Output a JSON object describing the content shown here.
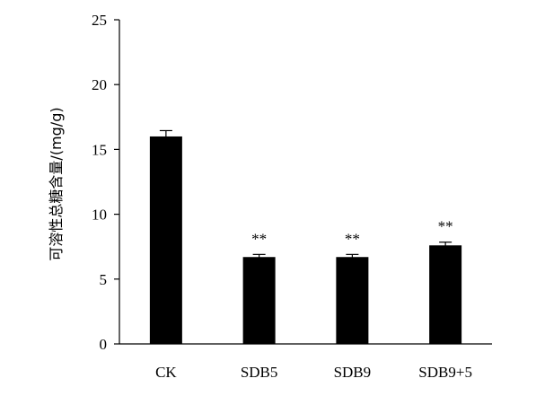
{
  "chart_data": {
    "type": "bar",
    "title": "",
    "xlabel": "",
    "ylabel": "可溶性总糖含量/(mg/g)",
    "ylim": [
      0,
      25
    ],
    "yticks": [
      0,
      5,
      10,
      15,
      20,
      25
    ],
    "categories": [
      "CK",
      "SDB5",
      "SDB9",
      "SDB9+5"
    ],
    "values": [
      16.0,
      6.7,
      6.7,
      7.6
    ],
    "errors": [
      0.45,
      0.2,
      0.2,
      0.25
    ],
    "annotations": [
      "",
      "**",
      "**",
      "**"
    ],
    "bar_color": "#000000",
    "grid": false,
    "legend": "none"
  }
}
